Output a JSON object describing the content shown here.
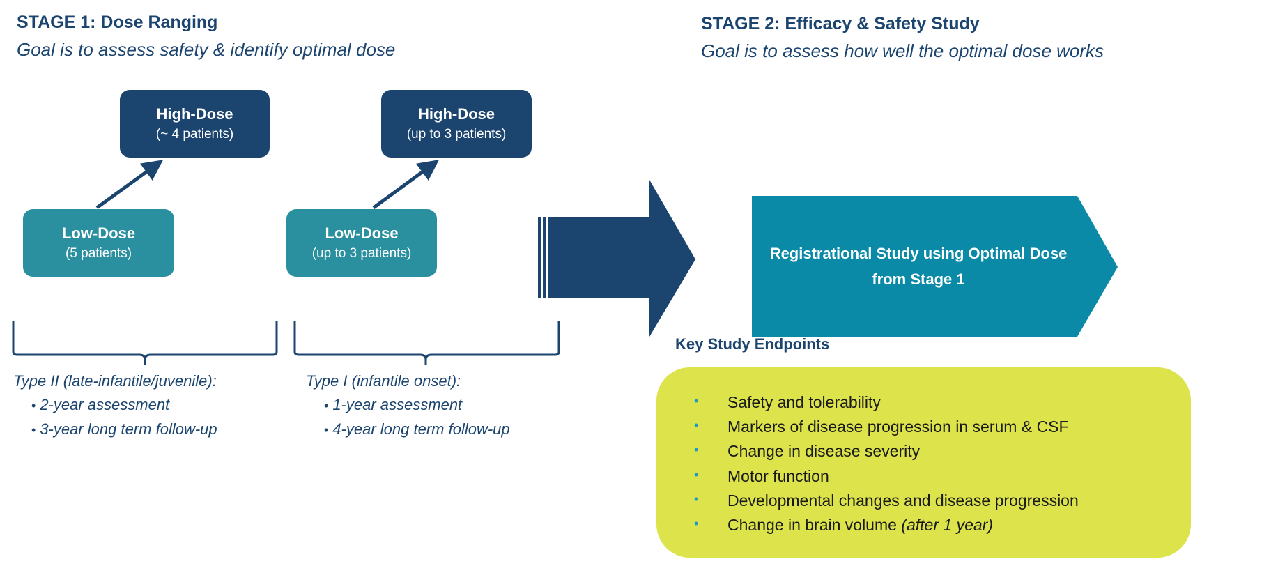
{
  "stage1": {
    "title": "STAGE 1: Dose Ranging",
    "goal": "Goal is to assess safety & identify optimal dose",
    "cohorts": [
      {
        "high": {
          "label": "High-Dose",
          "patients": "(~ 4 patients)"
        },
        "low": {
          "label": "Low-Dose",
          "patients": "(5 patients)"
        },
        "group": {
          "label": "Type II (late-infantile/juvenile):",
          "items": [
            "2-year assessment",
            "3-year long term follow-up"
          ]
        }
      },
      {
        "high": {
          "label": "High-Dose",
          "patients": "(up to 3 patients)"
        },
        "low": {
          "label": "Low-Dose",
          "patients": "(up to 3 patients)"
        },
        "group": {
          "label": "Type I (infantile onset):",
          "items": [
            "1-year assessment",
            "4-year long term follow-up"
          ]
        }
      }
    ]
  },
  "stage2": {
    "title": "STAGE 2: Efficacy & Safety Study",
    "goal": "Goal is to assess how well the optimal dose works",
    "study": "Registrational Study using Optimal Dose from Stage 1"
  },
  "endpoints": {
    "title": "Key Study Endpoints",
    "bullet": "•",
    "items": [
      "Safety and tolerability",
      "Markers of disease progression in serum & CSF",
      "Change in disease severity",
      "Motor function",
      "Developmental changes and disease progression",
      "Change in brain volume"
    ],
    "last_item_note": "(after 1 year)"
  },
  "colors": {
    "navy": "#1b456f",
    "teal": "#2a8f9f",
    "study": "#0b8aa8",
    "endpoints_bg": "#dde34b",
    "bullet": "#1e9bc4"
  }
}
